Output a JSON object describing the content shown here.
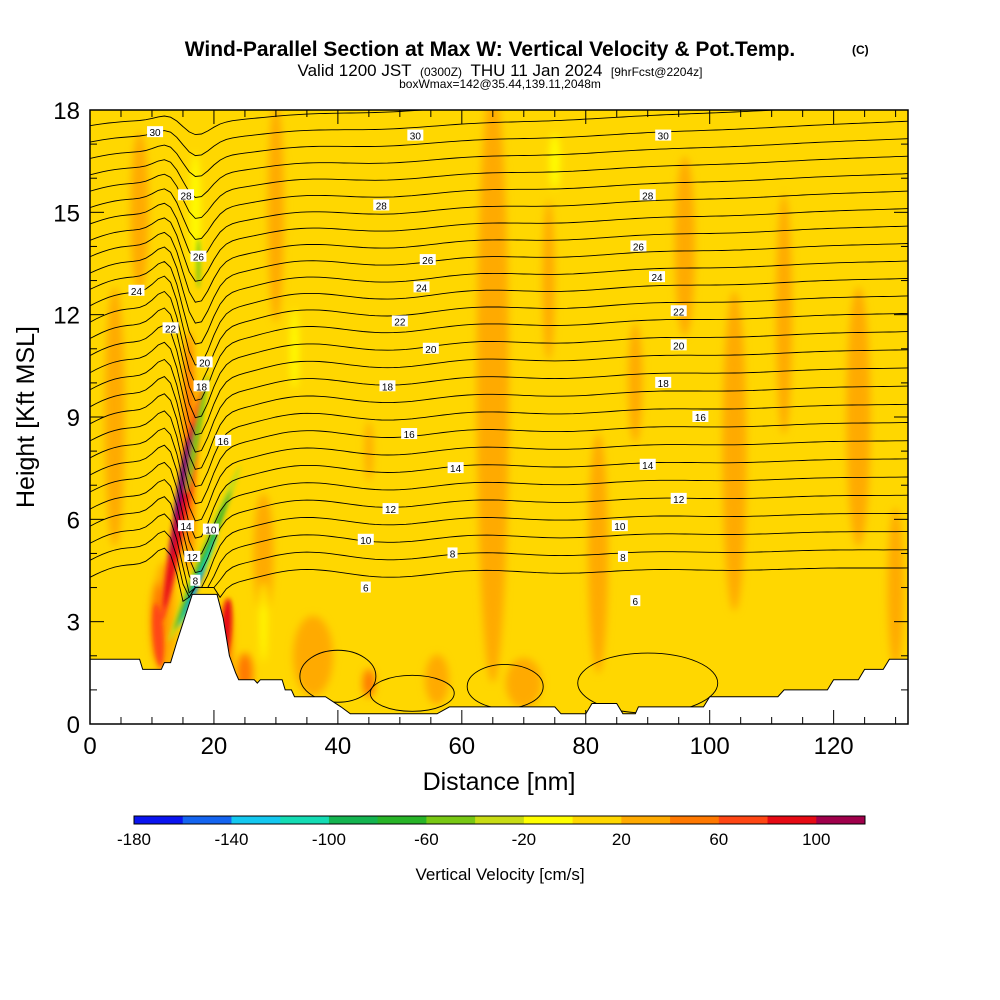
{
  "title": {
    "main": "Wind-Parallel Section at Max W: Vertical Velocity & Pot.Temp.",
    "copyright": "(C)",
    "valid_a": "Valid 1200 JST",
    "valid_b": "(0300Z)",
    "valid_c": "THU 11 Jan 2024",
    "valid_d": "[9hrFcst@2204z]",
    "box": "boxWmax=142@35.44,139.11,2048m"
  },
  "chart_data": {
    "type": "heatmap",
    "xlabel": "Distance [nm]",
    "ylabel": "Height [Kft MSL]",
    "xlim": [
      0,
      132
    ],
    "ylim": [
      0,
      18
    ],
    "x_ticks": [
      0,
      20,
      40,
      60,
      80,
      100,
      120
    ],
    "y_ticks": [
      0,
      3,
      6,
      9,
      12,
      15,
      18
    ],
    "grid": false,
    "background_field": "Vertical Velocity [cm/s]",
    "colorbar": {
      "label": "Vertical Velocity [cm/s]",
      "tick_labels": [
        "-180",
        "-140",
        "-100",
        "-60",
        "-20",
        "20",
        "60",
        "100"
      ],
      "tick_values": [
        -180,
        -140,
        -100,
        -60,
        -20,
        20,
        60,
        100
      ],
      "bounds": [
        -180,
        -160,
        -140,
        -120,
        -100,
        -80,
        -60,
        -40,
        -20,
        0,
        20,
        40,
        60,
        80,
        100,
        120
      ],
      "colors": [
        "#0a14f0",
        "#1464f0",
        "#14c8f0",
        "#14dcb4",
        "#14b450",
        "#28b428",
        "#78c814",
        "#c8dc14",
        "#ffff00",
        "#ffd700",
        "#ffaa00",
        "#ff7800",
        "#ff4614",
        "#e60a14",
        "#a0004b",
        "#5a0a8c"
      ]
    },
    "contour_field": "Potential temperature",
    "contour_labels": [
      {
        "text": "30",
        "x": 10.5,
        "y": 17.35
      },
      {
        "text": "30",
        "x": 52.5,
        "y": 17.25
      },
      {
        "text": "30",
        "x": 92.5,
        "y": 17.25
      },
      {
        "text": "28",
        "x": 15.5,
        "y": 15.5
      },
      {
        "text": "28",
        "x": 47.0,
        "y": 15.2
      },
      {
        "text": "28",
        "x": 90.0,
        "y": 15.5
      },
      {
        "text": "26",
        "x": 17.5,
        "y": 13.7
      },
      {
        "text": "26",
        "x": 54.5,
        "y": 13.6
      },
      {
        "text": "26",
        "x": 88.5,
        "y": 14.0
      },
      {
        "text": "24",
        "x": 7.5,
        "y": 12.7
      },
      {
        "text": "24",
        "x": 53.5,
        "y": 12.8
      },
      {
        "text": "24",
        "x": 91.5,
        "y": 13.1
      },
      {
        "text": "22",
        "x": 13.0,
        "y": 11.6
      },
      {
        "text": "22",
        "x": 50.0,
        "y": 11.8
      },
      {
        "text": "22",
        "x": 95.0,
        "y": 12.1
      },
      {
        "text": "20",
        "x": 18.5,
        "y": 10.6
      },
      {
        "text": "20",
        "x": 55.0,
        "y": 11.0
      },
      {
        "text": "20",
        "x": 95.0,
        "y": 11.1
      },
      {
        "text": "18",
        "x": 18.0,
        "y": 9.9
      },
      {
        "text": "18",
        "x": 48.0,
        "y": 9.9
      },
      {
        "text": "18",
        "x": 92.5,
        "y": 10.0
      },
      {
        "text": "16",
        "x": 21.5,
        "y": 8.3
      },
      {
        "text": "16",
        "x": 51.5,
        "y": 8.5
      },
      {
        "text": "16",
        "x": 98.5,
        "y": 9.0
      },
      {
        "text": "14",
        "x": 15.5,
        "y": 5.8
      },
      {
        "text": "14",
        "x": 59.0,
        "y": 7.5
      },
      {
        "text": "14",
        "x": 90.0,
        "y": 7.6
      },
      {
        "text": "12",
        "x": 16.5,
        "y": 4.9
      },
      {
        "text": "12",
        "x": 48.5,
        "y": 6.3
      },
      {
        "text": "12",
        "x": 95.0,
        "y": 6.6
      },
      {
        "text": "10",
        "x": 19.5,
        "y": 5.7
      },
      {
        "text": "10",
        "x": 44.5,
        "y": 5.4
      },
      {
        "text": "10",
        "x": 85.5,
        "y": 5.8
      },
      {
        "text": "8",
        "x": 17.0,
        "y": 4.2
      },
      {
        "text": "8",
        "x": 58.5,
        "y": 5.0
      },
      {
        "text": "8",
        "x": 86.0,
        "y": 4.9
      },
      {
        "text": "6",
        "x": 44.5,
        "y": 4.0
      },
      {
        "text": "6",
        "x": 88.0,
        "y": 3.6
      }
    ],
    "terrain_profile_kft": [
      [
        0,
        0
      ],
      [
        0,
        1.9
      ],
      [
        3,
        1.9
      ],
      [
        8,
        1.9
      ],
      [
        8.5,
        1.6
      ],
      [
        11.5,
        1.6
      ],
      [
        12,
        1.8
      ],
      [
        13,
        1.8
      ],
      [
        14,
        2.4
      ],
      [
        16.5,
        3.8
      ],
      [
        20.5,
        3.8
      ],
      [
        21.5,
        3.1
      ],
      [
        22.5,
        2.0
      ],
      [
        23.5,
        1.5
      ],
      [
        24,
        1.3
      ],
      [
        26.5,
        1.3
      ],
      [
        27,
        1.2
      ],
      [
        27.5,
        1.3
      ],
      [
        31,
        1.3
      ],
      [
        31.5,
        1.0
      ],
      [
        32.5,
        1.0
      ],
      [
        33,
        0.8
      ],
      [
        38,
        0.8
      ],
      [
        40.5,
        0.5
      ],
      [
        42,
        0.3
      ],
      [
        56,
        0.3
      ],
      [
        58,
        0.5
      ],
      [
        62,
        0.5
      ],
      [
        75,
        0.5
      ],
      [
        76,
        0.3
      ],
      [
        80,
        0.3
      ],
      [
        81,
        0.6
      ],
      [
        85,
        0.6
      ],
      [
        86,
        0.3
      ],
      [
        88,
        0.3
      ],
      [
        88.5,
        0.5
      ],
      [
        99,
        0.5
      ],
      [
        100,
        0.8
      ],
      [
        104,
        0.8
      ],
      [
        111,
        0.8
      ],
      [
        112,
        1.0
      ],
      [
        119,
        1.0
      ],
      [
        120,
        1.3
      ],
      [
        124,
        1.3
      ],
      [
        125,
        1.6
      ],
      [
        128,
        1.6
      ],
      [
        129,
        1.9
      ],
      [
        132,
        1.9
      ],
      [
        132,
        0
      ]
    ],
    "colorbar_position": "bottom"
  }
}
